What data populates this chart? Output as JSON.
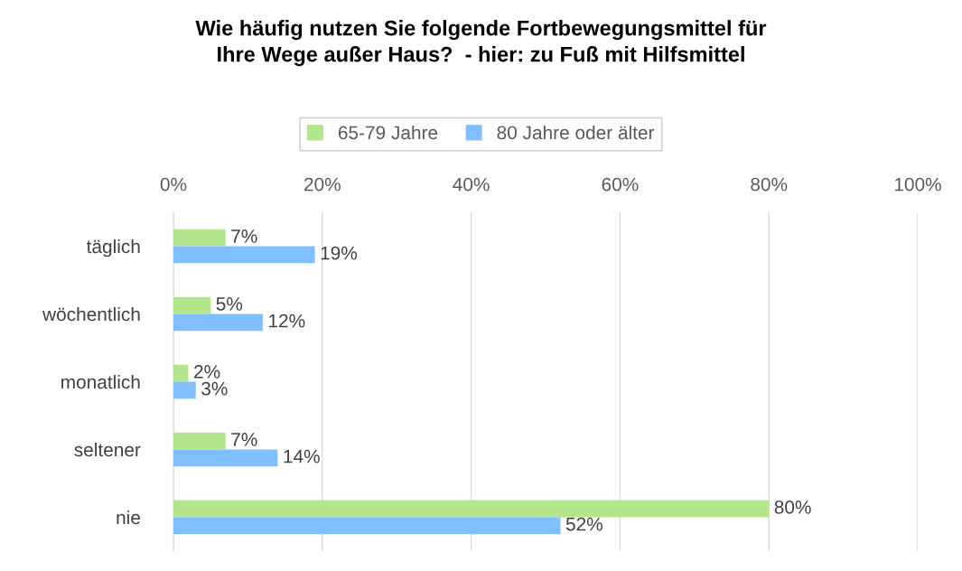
{
  "chart_data": {
    "type": "bar",
    "orientation": "horizontal",
    "title": "Wie häufig nutzen Sie folgende Fortbewegungsmittel für\nIhre Wege außer Haus?  - hier: zu Fuß mit Hilfsmittel",
    "categories": [
      "täglich",
      "wöchentlich",
      "monatlich",
      "seltener",
      "nie"
    ],
    "series": [
      {
        "name": "65-79 Jahre",
        "color": "#b3e58c",
        "values": [
          7,
          5,
          2,
          7,
          80
        ],
        "value_labels": [
          "7%",
          "5%",
          "2%",
          "7%",
          "80%"
        ]
      },
      {
        "name": "80 Jahre oder älter",
        "color": "#80bfff",
        "values": [
          19,
          12,
          3,
          14,
          52
        ],
        "value_labels": [
          "19%",
          "12%",
          "3%",
          "14%",
          "52%"
        ]
      }
    ],
    "xlim": [
      0,
      100
    ],
    "xticks": [
      {
        "value": 0,
        "label": "0%"
      },
      {
        "value": 20,
        "label": "20%"
      },
      {
        "value": 40,
        "label": "40%"
      },
      {
        "value": 60,
        "label": "60%"
      },
      {
        "value": 80,
        "label": "80%"
      },
      {
        "value": 100,
        "label": "100%"
      }
    ],
    "grid": "x",
    "legend": "top"
  }
}
